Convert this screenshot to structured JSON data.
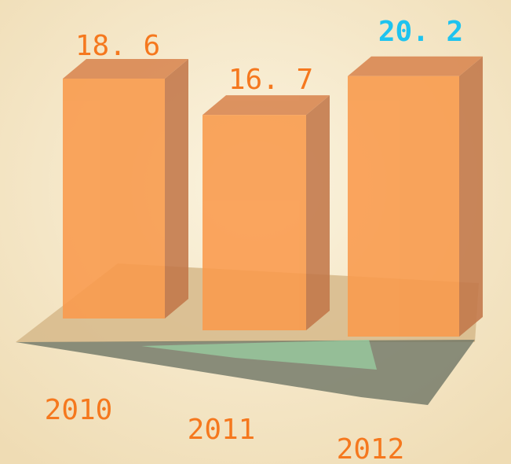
{
  "chart_data": {
    "type": "bar3d",
    "categories": [
      "2010",
      "2011",
      "2012"
    ],
    "values": [
      18.6,
      16.7,
      20.2
    ],
    "value_labels": [
      "18. 6",
      "16. 7",
      "20. 2"
    ],
    "color": "#f99a4c",
    "value_label_colors": [
      "#f5781e",
      "#f5781e",
      "#1ec3ef"
    ],
    "category_color": "#f5781e"
  }
}
